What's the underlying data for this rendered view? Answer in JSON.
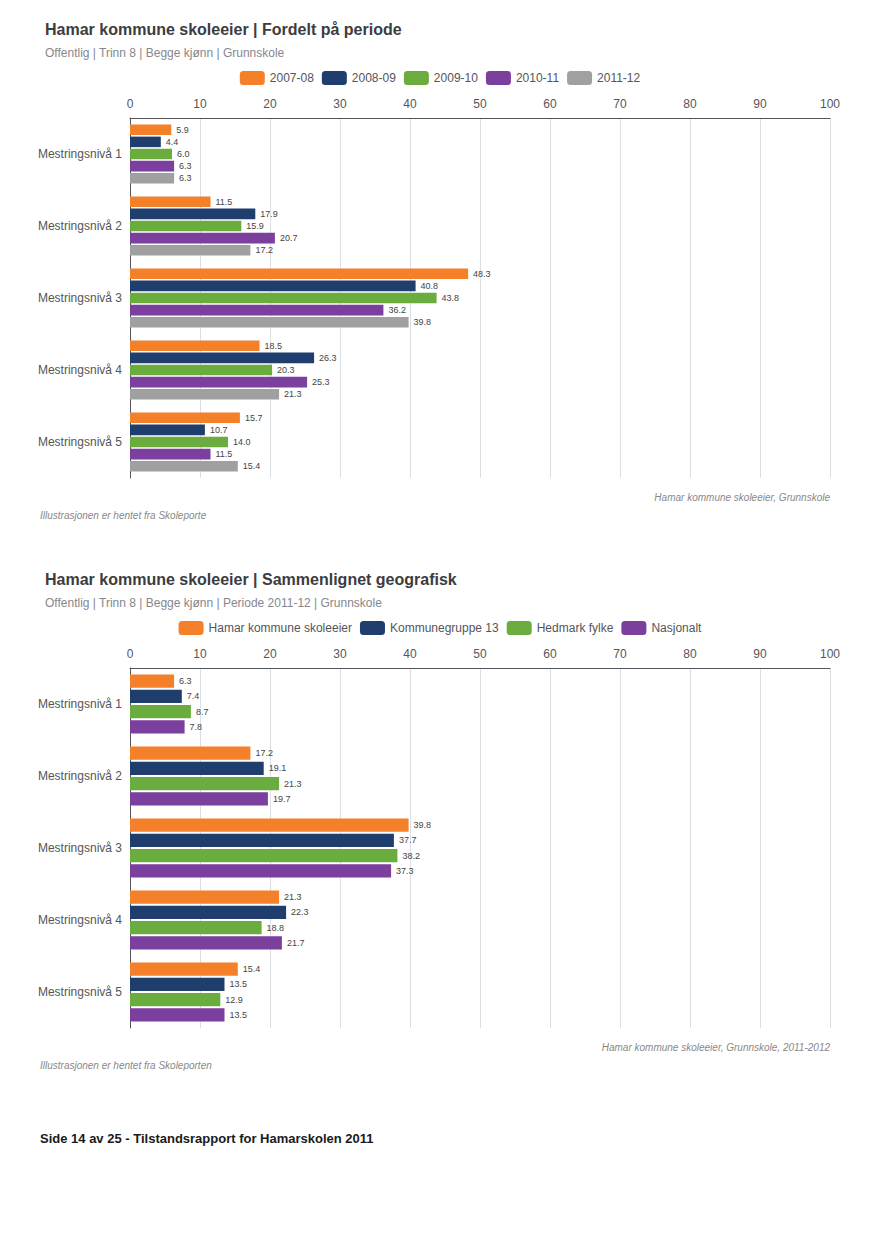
{
  "chart_data": [
    {
      "type": "bar",
      "orientation": "horizontal",
      "grid": true,
      "data_labels": true,
      "title": "Hamar kommune skoleeier | Fordelt på periode",
      "subtitle": "Offentlig | Trinn 8 | Begge kjønn | Grunnskole",
      "categories": [
        "Mestringsnivå 1",
        "Mestringsnivå 2",
        "Mestringsnivå 3",
        "Mestringsnivå 4",
        "Mestringsnivå 5"
      ],
      "series": [
        {
          "name": "2007-08",
          "color": "#F4802A",
          "values": [
            5.9,
            11.5,
            48.3,
            18.5,
            15.7
          ]
        },
        {
          "name": "2008-09",
          "color": "#1F3E6E",
          "values": [
            4.4,
            17.9,
            40.8,
            26.3,
            10.7
          ]
        },
        {
          "name": "2009-10",
          "color": "#6AAC3E",
          "values": [
            6.0,
            15.9,
            43.8,
            20.3,
            14.0
          ],
          "value_labels": [
            "6.0",
            "15.9",
            "43.8",
            "20.3",
            "14.0"
          ]
        },
        {
          "name": "2010-11",
          "color": "#7B3F9E",
          "values": [
            6.3,
            20.7,
            36.2,
            25.3,
            11.5
          ]
        },
        {
          "name": "2011-12",
          "color": "#A0A0A0",
          "values": [
            6.3,
            17.2,
            39.8,
            21.3,
            15.4
          ]
        }
      ],
      "xlim": [
        0,
        100
      ],
      "xticks": [
        0,
        10,
        20,
        30,
        40,
        50,
        60,
        70,
        80,
        90,
        100
      ],
      "annotations": [
        "Hamar kommune skoleeier, Grunnskole",
        "Illustrasjonen er hentet fra Skoleporte"
      ]
    },
    {
      "type": "bar",
      "orientation": "horizontal",
      "grid": true,
      "data_labels": true,
      "title": "Hamar kommune skoleeier | Sammenlignet geografisk",
      "subtitle": "Offentlig | Trinn 8 | Begge kjønn | Periode 2011-12 | Grunnskole",
      "categories": [
        "Mestringsnivå 1",
        "Mestringsnivå 2",
        "Mestringsnivå 3",
        "Mestringsnivå 4",
        "Mestringsnivå 5"
      ],
      "series": [
        {
          "name": "Hamar kommune skoleeier",
          "color": "#F4802A",
          "values": [
            6.3,
            17.2,
            39.8,
            21.3,
            15.4
          ]
        },
        {
          "name": "Kommunegruppe 13",
          "color": "#1F3E6E",
          "values": [
            7.4,
            19.1,
            37.7,
            22.3,
            13.5
          ]
        },
        {
          "name": "Hedmark fylke",
          "color": "#6AAC3E",
          "values": [
            8.7,
            21.3,
            38.2,
            18.8,
            12.9
          ]
        },
        {
          "name": "Nasjonalt",
          "color": "#7B3F9E",
          "values": [
            7.8,
            19.7,
            37.3,
            21.7,
            13.5
          ]
        }
      ],
      "xlim": [
        0,
        100
      ],
      "xticks": [
        0,
        10,
        20,
        30,
        40,
        50,
        60,
        70,
        80,
        90,
        100
      ],
      "annotations": [
        "Hamar kommune skoleeier, Grunnskole, 2011-2012",
        "Illustrasjonen er hentet fra Skoleporten",
        "Side 14 av 25 - Tilstandsrapport for Hamarskolen 2011"
      ]
    }
  ]
}
